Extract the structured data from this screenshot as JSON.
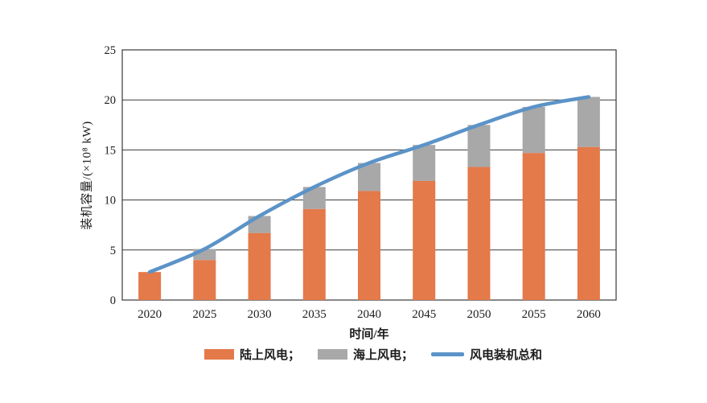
{
  "figure": {
    "x_axis_title": "时间/年",
    "y_axis_title": "装机容量/(×10⁸ kW)"
  },
  "legend": {
    "items": [
      {
        "label": "陆上风电；",
        "swatch": "bar",
        "color": "#E4794A"
      },
      {
        "label": "海上风电；",
        "swatch": "bar",
        "color": "#A8A8A8"
      },
      {
        "label": "风电装机总和",
        "swatch": "line",
        "color": "#5B93C7"
      }
    ]
  },
  "chart_data": {
    "type": "bar",
    "subtype": "stacked-bars-with-total-line",
    "title": "",
    "categories": [
      "2020",
      "2025",
      "2030",
      "2035",
      "2040",
      "2045",
      "2050",
      "2055",
      "2060"
    ],
    "series": [
      {
        "name": "陆上风电",
        "type": "bar",
        "stack": "capacity",
        "color": "#E4794A",
        "values": [
          2.8,
          4.0,
          6.7,
          9.1,
          10.9,
          11.9,
          13.3,
          14.7,
          15.3
        ]
      },
      {
        "name": "海上风电",
        "type": "bar",
        "stack": "capacity",
        "color": "#A8A8A8",
        "values": [
          0,
          1.1,
          1.7,
          2.2,
          2.8,
          3.6,
          4.2,
          4.6,
          5.0
        ]
      },
      {
        "name": "风电装机总和",
        "type": "line",
        "color": "#5B93C7",
        "values": [
          2.8,
          5.1,
          8.4,
          11.3,
          13.7,
          15.5,
          17.5,
          19.3,
          20.3
        ]
      }
    ],
    "xlabel": "时间/年",
    "ylabel": "装机容量/(×10⁸ kW)",
    "ylim": [
      0,
      25
    ],
    "yticks": [
      0,
      5,
      10,
      15,
      20,
      25
    ],
    "grid": "horizontal",
    "legend_position": "bottom"
  },
  "colors": {
    "onshore": "#E4794A",
    "offshore": "#A8A8A8",
    "total_line": "#5B93C7",
    "axis": "#3a3a3a",
    "text": "#1c1c1c",
    "background": "#FFFFFF"
  }
}
